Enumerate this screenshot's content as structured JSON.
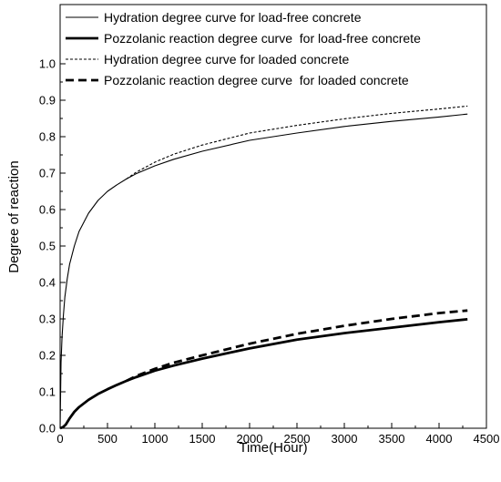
{
  "chart_data": {
    "type": "line",
    "xlabel": "Time(Hour)",
    "ylabel": "Degree of reaction",
    "xlim": [
      0,
      4500
    ],
    "ylim": [
      0,
      1.0
    ],
    "xticks": [
      0,
      500,
      1000,
      1500,
      2000,
      2500,
      3000,
      3500,
      4000,
      4500
    ],
    "yticks": [
      0.0,
      0.1,
      0.2,
      0.3,
      0.4,
      0.5,
      0.6,
      0.7,
      0.8,
      0.9,
      1.0
    ],
    "xtick_labels": [
      "0",
      "500",
      "1000",
      "1500",
      "2000",
      "2500",
      "3000",
      "3500",
      "4000",
      "4500"
    ],
    "ytick_labels": [
      "0.0",
      "0.1",
      "0.2",
      "0.3",
      "0.4",
      "0.5",
      "0.6",
      "0.7",
      "0.8",
      "0.9",
      "1.0"
    ],
    "grid": false,
    "legend_position": "top",
    "series": [
      {
        "name": "Hydration degree curve for load-free concrete",
        "style": "thin-solid",
        "color": "#000000",
        "x": [
          0,
          10,
          20,
          35,
          50,
          75,
          100,
          150,
          200,
          300,
          400,
          500,
          600,
          700,
          800,
          1000,
          1200,
          1500,
          2000,
          2500,
          3000,
          3500,
          4000,
          4300
        ],
        "y": [
          0.0,
          0.18,
          0.25,
          0.31,
          0.36,
          0.41,
          0.45,
          0.5,
          0.54,
          0.59,
          0.625,
          0.65,
          0.668,
          0.684,
          0.698,
          0.72,
          0.738,
          0.76,
          0.79,
          0.81,
          0.828,
          0.842,
          0.854,
          0.862
        ]
      },
      {
        "name": "Pozzolanic reaction degree curve  for load-free concrete",
        "style": "thick-solid",
        "color": "#000000",
        "x": [
          0,
          30,
          60,
          100,
          150,
          200,
          300,
          400,
          500,
          600,
          700,
          800,
          1000,
          1200,
          1500,
          2000,
          2500,
          3000,
          3500,
          4000,
          4300
        ],
        "y": [
          0.0,
          0.003,
          0.01,
          0.027,
          0.045,
          0.058,
          0.078,
          0.094,
          0.107,
          0.119,
          0.13,
          0.14,
          0.158,
          0.172,
          0.191,
          0.219,
          0.243,
          0.261,
          0.276,
          0.291,
          0.299
        ]
      },
      {
        "name": "Hydration degree curve for loaded concrete",
        "style": "thin-dashed",
        "color": "#000000",
        "x": [
          700,
          800,
          1000,
          1200,
          1500,
          2000,
          2500,
          3000,
          3500,
          4000,
          4300
        ],
        "y": [
          0.684,
          0.702,
          0.73,
          0.752,
          0.777,
          0.81,
          0.831,
          0.849,
          0.864,
          0.876,
          0.884
        ]
      },
      {
        "name": "Pozzolanic reaction degree curve  for loaded concrete",
        "style": "thick-dashed",
        "color": "#000000",
        "x": [
          700,
          800,
          1000,
          1200,
          1500,
          2000,
          2500,
          3000,
          3500,
          4000,
          4300
        ],
        "y": [
          0.13,
          0.143,
          0.163,
          0.18,
          0.2,
          0.232,
          0.259,
          0.281,
          0.3,
          0.316,
          0.323
        ]
      }
    ]
  }
}
